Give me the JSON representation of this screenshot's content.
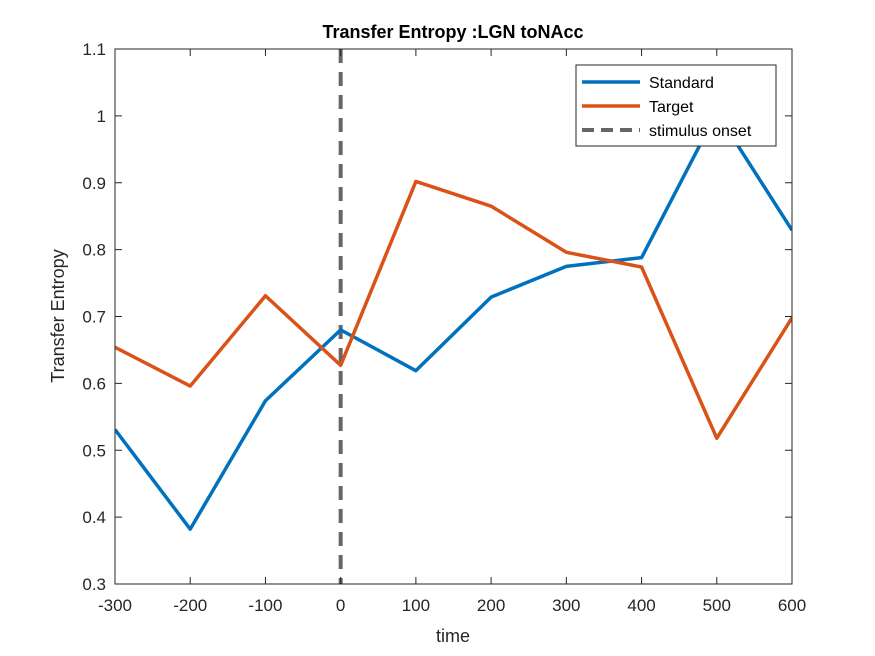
{
  "chart_data": {
    "type": "line",
    "title": "Transfer Entropy :LGN toNAcc",
    "xlabel": "time",
    "ylabel": "Transfer Entropy",
    "xlim": [
      -300,
      600
    ],
    "ylim": [
      0.3,
      1.1
    ],
    "x_ticks": [
      "-300",
      "-200",
      "-100",
      "0",
      "100",
      "200",
      "300",
      "400",
      "500",
      "600"
    ],
    "y_ticks": [
      "0.3",
      "0.4",
      "0.5",
      "0.6",
      "0.7",
      "0.8",
      "0.9",
      "1",
      "1.1"
    ],
    "x": [
      -300,
      -200,
      -100,
      0,
      100,
      200,
      300,
      400,
      500,
      600
    ],
    "series": [
      {
        "name": "Standard",
        "color": "#0072BD",
        "values": [
          0.531,
          0.382,
          0.574,
          0.68,
          0.619,
          0.729,
          0.775,
          0.788,
          1.005,
          0.829
        ]
      },
      {
        "name": "Target",
        "color": "#D95319",
        "values": [
          0.654,
          0.596,
          0.731,
          0.627,
          0.902,
          0.865,
          0.796,
          0.774,
          0.518,
          0.698
        ]
      }
    ],
    "vline": {
      "x": 0,
      "name": "stimulus onset",
      "color": "#666666",
      "style": "dashed"
    },
    "legend_position": "top-right",
    "grid": false,
    "box": true
  }
}
